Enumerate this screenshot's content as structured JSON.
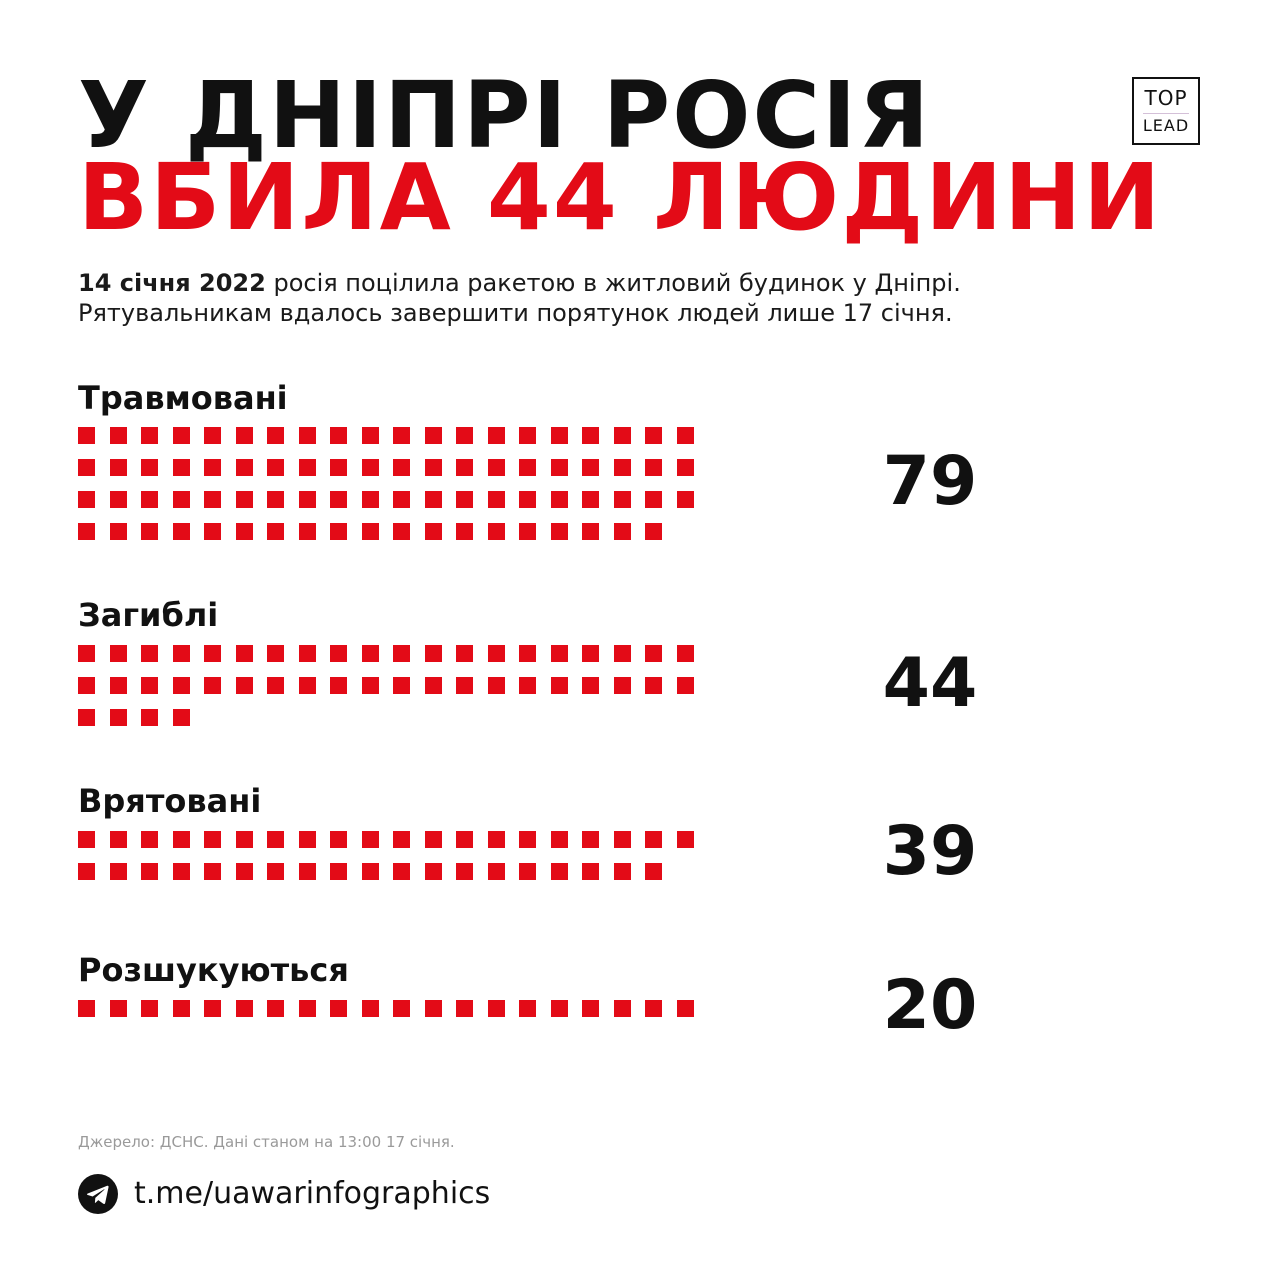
{
  "title": {
    "line1": "У ДНІПРІ РОСІЯ",
    "line2": "ВБИЛА 44 ЛЮДИНИ"
  },
  "logo": {
    "line1": "TOP",
    "line2": "LEAD"
  },
  "intro": {
    "date": "14 січня 2022",
    "rest": " росія поцілила ракетою в житловий будинок у Дніпрі.",
    "line2": "Рятувальникам вдалось завершити порятунок людей лише 17 січня."
  },
  "chart_data": {
    "type": "waffle",
    "per_row": 20,
    "color": "#e30b17",
    "categories": [
      {
        "label": "Травмовані",
        "value": 79
      },
      {
        "label": "Загиблі",
        "value": 44
      },
      {
        "label": "Врятовані",
        "value": 39
      },
      {
        "label": "Розшукуються",
        "value": 20
      }
    ]
  },
  "footer": {
    "source": "Джерело: ДСНС. Дані станом на 13:00 17 січня.",
    "link": "t.me/uawarinfographics"
  }
}
